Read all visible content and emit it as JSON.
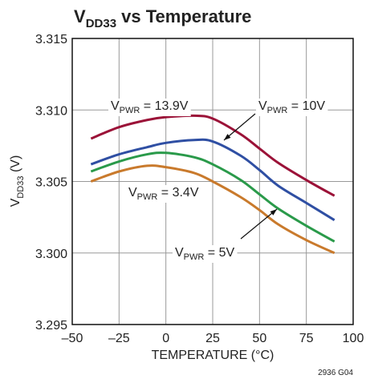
{
  "chart_data": {
    "type": "line",
    "title": [
      "V",
      "DD33",
      " vs Temperature"
    ],
    "ylabel": [
      "V",
      "DD33",
      " (V)"
    ],
    "xlabel": "TEMPERATURE (°C)",
    "footnote": "2936 G04",
    "x": [
      -40,
      -25,
      -10,
      0,
      15,
      25,
      40,
      50,
      60,
      75,
      90
    ],
    "series": [
      {
        "label": [
          "V",
          "PWR",
          " = 13.9V"
        ],
        "color": "#9b1238",
        "values": [
          3.308,
          3.3088,
          3.3093,
          3.3095,
          3.3096,
          3.3094,
          3.3083,
          3.3073,
          3.3063,
          3.3051,
          3.304
        ]
      },
      {
        "label": [
          "V",
          "PWR",
          " = 10V"
        ],
        "color": "#2f4fa3",
        "values": [
          3.3062,
          3.3069,
          3.3074,
          3.3077,
          3.3079,
          3.3078,
          3.3068,
          3.3058,
          3.3047,
          3.3035,
          3.3023
        ]
      },
      {
        "label": [
          "V",
          "PWR",
          " = 3.4V"
        ],
        "color": "#2a9a4a",
        "values": [
          3.3057,
          3.3064,
          3.3069,
          3.307,
          3.3067,
          3.3062,
          3.3051,
          3.3041,
          3.3031,
          3.3019,
          3.3008
        ]
      },
      {
        "label": [
          "V",
          "PWR",
          " = 5V"
        ],
        "color": "#c97a2c",
        "values": [
          3.305,
          3.3057,
          3.3061,
          3.306,
          3.3056,
          3.305,
          3.3039,
          3.303,
          3.302,
          3.3009,
          3.3
        ]
      }
    ],
    "xlim": [
      -50,
      100
    ],
    "xticks": [
      {
        "value": -50,
        "label": "–50"
      },
      {
        "value": -25,
        "label": "–25"
      },
      0,
      25,
      50,
      75,
      100
    ],
    "ylim": [
      3.295,
      3.315
    ],
    "yticks": [
      3.295,
      {
        "value": 3.3,
        "label": "3.300"
      },
      3.305,
      {
        "value": 3.31,
        "label": "3.310"
      },
      3.315
    ],
    "grid": true
  }
}
